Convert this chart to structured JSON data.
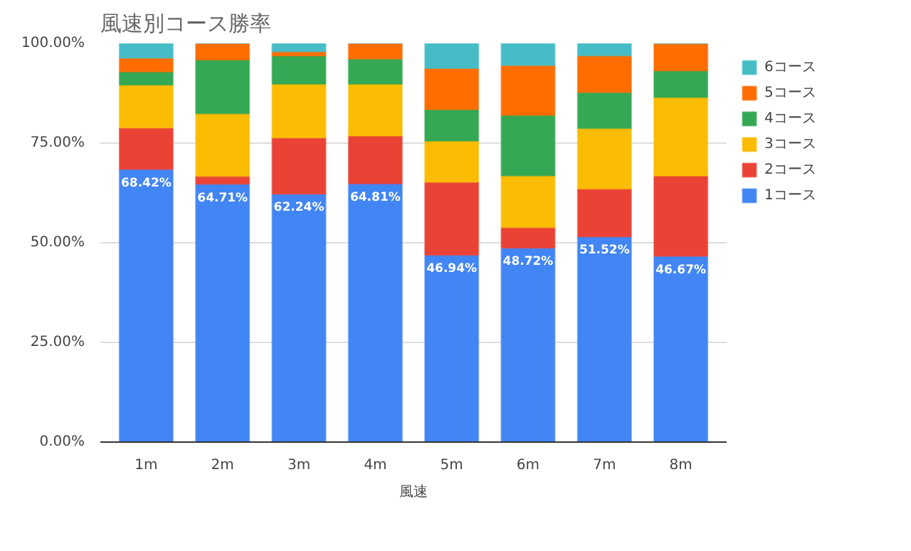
{
  "chart_data": {
    "type": "bar",
    "stacked": true,
    "title": "風速別コース勝率",
    "xlabel": "風速",
    "categories": [
      "1m",
      "2m",
      "3m",
      "4m",
      "5m",
      "6m",
      "7m",
      "8m"
    ],
    "ylim": [
      0,
      100
    ],
    "yticks": [
      {
        "value": 0,
        "label": "0.00%"
      },
      {
        "value": 25,
        "label": "25.00%"
      },
      {
        "value": 50,
        "label": "50.00%"
      },
      {
        "value": 75,
        "label": "75.00%"
      },
      {
        "value": 100,
        "label": "100.00%"
      }
    ],
    "grid": "y",
    "legend": "top right",
    "series": [
      {
        "name": "1コース",
        "color": "#4285f4",
        "values": [
          68.42,
          64.71,
          62.24,
          64.81,
          46.94,
          48.72,
          51.52,
          46.67
        ],
        "value_labels": [
          "68.42%",
          "64.71%",
          "62.24%",
          "64.81%",
          "46.94%",
          "48.72%",
          "51.52%",
          "46.67%"
        ]
      },
      {
        "name": "2コース",
        "color": "#ea4335",
        "values": [
          10.4,
          2.0,
          14.1,
          12.0,
          18.3,
          5.1,
          12.0,
          20.1
        ]
      },
      {
        "name": "3コース",
        "color": "#fbbc04",
        "values": [
          10.8,
          15.7,
          13.5,
          13.0,
          10.3,
          13.0,
          15.2,
          19.7
        ]
      },
      {
        "name": "4コース",
        "color": "#34a853",
        "values": [
          3.3,
          13.5,
          7.1,
          6.3,
          7.9,
          15.2,
          9.0,
          6.7
        ]
      },
      {
        "name": "5コース",
        "color": "#ff6d01",
        "values": [
          3.4,
          4.1,
          1.0,
          3.9,
          10.3,
          12.5,
          9.2,
          6.8
        ]
      },
      {
        "name": "6コース",
        "color": "#46bdc6",
        "values": [
          3.7,
          0,
          2.1,
          0,
          6.3,
          5.5,
          3.1,
          0
        ]
      }
    ]
  }
}
